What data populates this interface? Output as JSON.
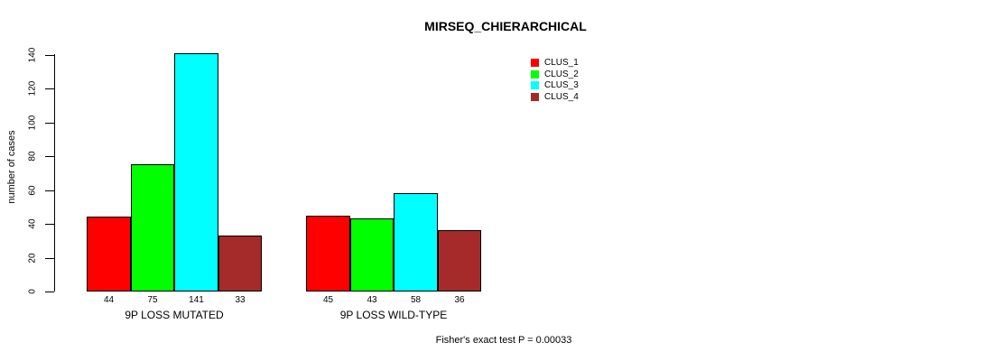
{
  "chart_data": {
    "type": "bar",
    "title": "MIRSEQ_CHIERARCHICAL",
    "ylabel": "number of cases",
    "xlabel": "",
    "ylim": [
      0,
      140
    ],
    "yticks": [
      0,
      20,
      40,
      60,
      80,
      100,
      120,
      140
    ],
    "grid": false,
    "legend_position": "top-right",
    "categories": [
      "9P LOSS MUTATED",
      "9P LOSS WILD-TYPE"
    ],
    "series": [
      {
        "name": "CLUS_1",
        "color": "#ff0000",
        "values": [
          44,
          45
        ]
      },
      {
        "name": "CLUS_2",
        "color": "#00ff00",
        "values": [
          75,
          43
        ]
      },
      {
        "name": "CLUS_3",
        "color": "#00ffff",
        "values": [
          141,
          58
        ]
      },
      {
        "name": "CLUS_4",
        "color": "#a52a2a",
        "values": [
          33,
          36
        ]
      }
    ],
    "bar_value_labels": [
      [
        44,
        75,
        141,
        33
      ],
      [
        45,
        43,
        58,
        36
      ]
    ],
    "annotation": "Fisher's exact test P = 0.00033"
  }
}
